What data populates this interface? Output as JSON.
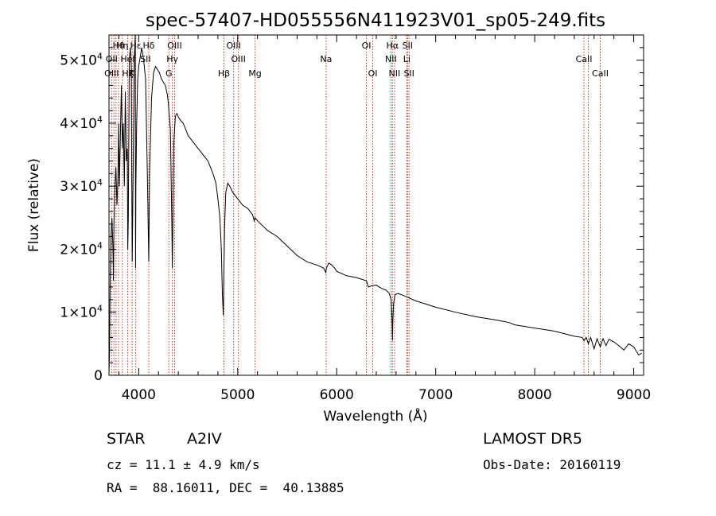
{
  "chart_data": {
    "type": "line",
    "title": "spec-57407-HD055556N411923V01_sp05-249.fits",
    "xlabel": "Wavelength (Å)",
    "ylabel": "Flux (relative)",
    "xlim": [
      3700,
      9100
    ],
    "ylim": [
      0,
      54000
    ],
    "x_ticks": [
      4000,
      5000,
      6000,
      7000,
      8000,
      9000
    ],
    "x_tick_labels": [
      "4000",
      "5000",
      "6000",
      "7000",
      "8000",
      "9000"
    ],
    "y_ticks": [
      0,
      10000,
      20000,
      30000,
      40000,
      50000
    ],
    "y_tick_labels": [
      {
        "mant": "0",
        "exp": ""
      },
      {
        "mant": "1×10",
        "exp": "4"
      },
      {
        "mant": "2×10",
        "exp": "4"
      },
      {
        "mant": "3×10",
        "exp": "4"
      },
      {
        "mant": "4×10",
        "exp": "4"
      },
      {
        "mant": "5×10",
        "exp": "4"
      }
    ],
    "grid": false,
    "series": [
      {
        "x": [
          3700,
          3705,
          3712,
          3720,
          3730,
          3740,
          3745,
          3750,
          3760,
          3770,
          3780,
          3790,
          3798,
          3805,
          3815,
          3825,
          3835,
          3845,
          3855,
          3865,
          3875,
          3885,
          3890,
          3895,
          3905,
          3915,
          3925,
          3930,
          3935,
          3945,
          3955,
          3965,
          3968,
          3972,
          3980,
          3990,
          4000,
          4010,
          4030,
          4050,
          4070,
          4090,
          4102,
          4110,
          4130,
          4150,
          4170,
          4190,
          4210,
          4230,
          4250,
          4270,
          4290,
          4300,
          4320,
          4335,
          4340,
          4346,
          4355,
          4370,
          4380,
          4390,
          4400,
          4420,
          4450,
          4500,
          4550,
          4600,
          4650,
          4700,
          4750,
          4780,
          4800,
          4820,
          4835,
          4845,
          4855,
          4861,
          4868,
          4880,
          4900,
          4920,
          4950,
          5000,
          5050,
          5100,
          5150,
          5167,
          5175,
          5200,
          5300,
          5400,
          5500,
          5600,
          5700,
          5800,
          5870,
          5890,
          5895,
          5920,
          5950,
          5980,
          6000,
          6100,
          6200,
          6300,
          6320,
          6350,
          6400,
          6450,
          6500,
          6530,
          6550,
          6558,
          6563,
          6568,
          6575,
          6590,
          6620,
          6700,
          6800,
          6900,
          7000,
          7200,
          7400,
          7600,
          7700,
          7750,
          7800,
          8000,
          8200,
          8400,
          8480,
          8498,
          8520,
          8542,
          8565,
          8600,
          8630,
          8662,
          8690,
          8720,
          8750,
          8800,
          8850,
          8900,
          8950,
          9000,
          9050,
          9080
        ],
        "y": [
          300,
          3000,
          15000,
          22000,
          25000,
          20000,
          15000,
          24000,
          30000,
          33000,
          27000,
          31000,
          40000,
          30000,
          38000,
          46000,
          36000,
          40000,
          30000,
          45000,
          34000,
          36000,
          20000,
          25000,
          50000,
          52000,
          49000,
          32000,
          18000,
          34000,
          50000,
          54000,
          17000,
          30000,
          40000,
          47000,
          49000,
          50000,
          52000,
          50000,
          47000,
          30000,
          18000,
          32000,
          44000,
          48000,
          49000,
          48500,
          48000,
          47000,
          46500,
          46000,
          44500,
          43000,
          39000,
          24000,
          17000,
          25000,
          37000,
          41000,
          41500,
          41500,
          41000,
          40500,
          40000,
          38000,
          37000,
          36000,
          35000,
          34000,
          32000,
          30500,
          28000,
          25000,
          20000,
          13000,
          9500,
          17000,
          24000,
          29000,
          30500,
          30000,
          29000,
          28000,
          27000,
          26500,
          25500,
          24500,
          25000,
          24500,
          23000,
          22000,
          20500,
          19000,
          18000,
          17500,
          17000,
          16300,
          17000,
          17800,
          17500,
          17000,
          16500,
          15800,
          15500,
          15000,
          14000,
          14200,
          14300,
          13800,
          13500,
          13000,
          12000,
          9000,
          5500,
          9000,
          11500,
          12800,
          13000,
          12500,
          11800,
          11300,
          10800,
          10000,
          9300,
          8800,
          8500,
          8300,
          8000,
          7500,
          7000,
          6200,
          6000,
          5500,
          6000,
          5000,
          6000,
          4200,
          5800,
          4500,
          5800,
          4700,
          5700,
          5300,
          4700,
          4000,
          5000,
          4500,
          3200,
          3500
        ]
      }
    ],
    "annotations": {
      "row1": [
        {
          "label": "Hθ",
          "wl": 3797
        },
        {
          "label": "Hη",
          "wl": 3835
        },
        {
          "label": "Hε",
          "wl": 3970
        },
        {
          "label": "Hδ",
          "wl": 4102
        },
        {
          "label": "OIII",
          "wl": 4363
        },
        {
          "label": "OIII",
          "wl": 4959
        },
        {
          "label": "OI",
          "wl": 6300
        },
        {
          "label": "Hα",
          "wl": 6563
        },
        {
          "label": "SII",
          "wl": 6716
        }
      ],
      "row2": [
        {
          "label": "OII",
          "wl": 3727
        },
        {
          "label": "HeI",
          "wl": 3889
        },
        {
          "label": "SII",
          "wl": 4069
        },
        {
          "label": "Hγ",
          "wl": 4340
        },
        {
          "label": "OIII",
          "wl": 5007
        },
        {
          "label": "Na",
          "wl": 5893
        },
        {
          "label": "NII",
          "wl": 6548
        },
        {
          "label": "Li",
          "wl": 6708
        },
        {
          "label": "CaII",
          "wl": 8498
        }
      ],
      "row3": [
        {
          "label": "OIII",
          "wl": 3727
        },
        {
          "label": "Hζ",
          "wl": 3889
        },
        {
          "label": "K",
          "wl": 3934
        },
        {
          "label": "G",
          "wl": 4305
        },
        {
          "label": "Hβ",
          "wl": 4861
        },
        {
          "label": "Mg",
          "wl": 5175
        },
        {
          "label": "OI",
          "wl": 6364
        },
        {
          "label": "NII",
          "wl": 6584
        },
        {
          "label": "SII",
          "wl": 6731
        },
        {
          "label": "CaII",
          "wl": 8662
        }
      ],
      "lines_wl": [
        3727,
        3750,
        3771,
        3797,
        3835,
        3889,
        3934,
        3970,
        4102,
        4305,
        4340,
        4363,
        4861,
        4959,
        5007,
        5175,
        5893,
        6300,
        6364,
        6548,
        6563,
        6584,
        6708,
        6716,
        6731,
        8498,
        8542,
        8662
      ]
    }
  },
  "info": {
    "object_class": "STAR",
    "subclass": "A2IV",
    "survey": "LAMOST DR5",
    "cz": "cz = 11.1 ± 4.9 km/s",
    "obs_date": "Obs-Date: 20160119",
    "coords": "RA =  88.16011, DEC =  40.13885"
  },
  "colors": {
    "spectrum": "#000000",
    "line_markers": "#c0392b",
    "background": "#ffffff"
  }
}
